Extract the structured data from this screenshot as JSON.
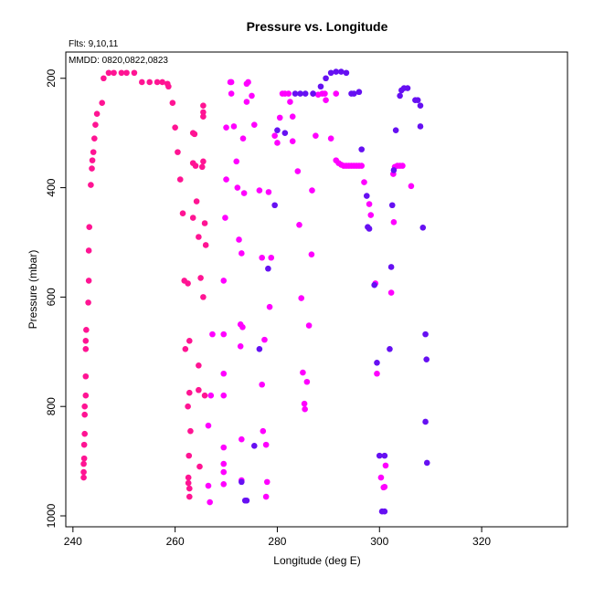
{
  "chart_data": {
    "type": "scatter",
    "title": "Pressure vs. Longitude",
    "subtitle": "Flts: 9,10,11",
    "annotation": "MMDD: 0820,0822,0823",
    "x_label": "Longitude (deg E)",
    "y_label": "Pressure (mbar)",
    "xlim": [
      238.6,
      336.8
    ],
    "ylim": [
      1020,
      152
    ],
    "xticks": [
      240,
      260,
      280,
      300,
      320
    ],
    "yticks": [
      200,
      400,
      600,
      800,
      1000
    ],
    "grid": false,
    "series": [
      {
        "color": "#ff1493",
        "x": [
          242.1,
          242.1,
          242.1,
          242.2,
          242.2,
          242.3,
          242.3,
          242.3,
          242.5,
          242.5,
          242.5,
          242.5,
          242.6,
          243,
          243.1,
          243.1,
          243.2,
          243.5,
          243.7,
          243.8,
          244,
          244.2,
          244.4,
          244.7,
          245.7,
          246,
          247,
          248,
          249.5,
          250.5,
          252,
          253.5,
          255,
          256.5,
          257.5,
          258.5,
          258.7,
          259.5,
          260,
          260.5,
          261,
          261.5,
          261.8,
          262.5,
          262,
          262.5,
          262.8,
          262.8,
          263,
          262.7,
          262.6,
          262.6,
          262.8,
          262.8,
          263.5,
          263.8,
          263.5,
          264,
          263.5,
          264.2,
          264.6,
          265,
          264.6,
          264.6,
          265.3,
          265.5,
          265.5,
          265.5,
          265.5,
          265.8,
          266,
          265.5,
          265.8,
          264.8
        ],
        "values": [
          930,
          920,
          905,
          895,
          870,
          850,
          815,
          800,
          780,
          745,
          695,
          680,
          660,
          610,
          570,
          515,
          472,
          395,
          365,
          350,
          335,
          310,
          285,
          265,
          245,
          200,
          190,
          190,
          190,
          190,
          190,
          207,
          207,
          207,
          207,
          210,
          215,
          245,
          290,
          335,
          385,
          447,
          570,
          575,
          695,
          800,
          775,
          680,
          845,
          890,
          930,
          940,
          950,
          965,
          300,
          302,
          355,
          360,
          455,
          425,
          490,
          565,
          725,
          770,
          362,
          250,
          262,
          270,
          352,
          465,
          505,
          600,
          780,
          910
        ]
      },
      {
        "color": "#ff00ff",
        "x": [
          266.8,
          266.5,
          266.5,
          267,
          267.3,
          269.5,
          269.5,
          269.5,
          269.5,
          269.8,
          270,
          269.5,
          269.5,
          269.5,
          269.5,
          270,
          270.8,
          271,
          271,
          271.5,
          272,
          272.2,
          272.5,
          273,
          272.8,
          273.2,
          272.8,
          273,
          273,
          273.5,
          273.3,
          274,
          274,
          274.3,
          275,
          275.5,
          276.5,
          277,
          277.5,
          277,
          277.2,
          277.8,
          277.8,
          278,
          278.3,
          278.5,
          278.8,
          279.5,
          280,
          280.5,
          281,
          281.5,
          282.2,
          282.5,
          283,
          283,
          284,
          284.3,
          284.7,
          285,
          285.3,
          285.4,
          285.8,
          286.2,
          286.7,
          286.8,
          287.5,
          287,
          288,
          288.8,
          289.3,
          289.5,
          290.5,
          291.5,
          291.5,
          292,
          292.5,
          293,
          293.5,
          294,
          294.5,
          295,
          295.5,
          296,
          296.5,
          297,
          298,
          298.3,
          299.2,
          299.5,
          300.3,
          300.8,
          301,
          301.2,
          302.3,
          302.8,
          302.7,
          303,
          303.5,
          304,
          304.5,
          306.2
        ],
        "values": [
          975,
          945,
          835,
          780,
          668,
          780,
          740,
          668,
          570,
          455,
          385,
          875,
          905,
          920,
          942,
          290,
          207,
          207,
          228,
          288,
          352,
          400,
          495,
          520,
          650,
          655,
          690,
          860,
          935,
          410,
          310,
          243,
          210,
          207,
          232,
          285,
          405,
          528,
          678,
          760,
          845,
          870,
          965,
          938,
          408,
          618,
          528,
          305,
          318,
          272,
          228,
          228,
          228,
          243,
          270,
          315,
          370,
          468,
          602,
          738,
          795,
          805,
          755,
          652,
          522,
          405,
          305,
          228,
          230,
          228,
          228,
          240,
          310,
          350,
          228,
          355,
          358,
          360,
          360,
          360,
          360,
          360,
          360,
          360,
          360,
          390,
          430,
          450,
          575,
          740,
          930,
          948,
          947,
          908,
          592,
          463,
          375,
          362,
          360,
          360,
          360,
          397
        ]
      },
      {
        "color": "#6610f2",
        "x": [
          274,
          273.7,
          273,
          275.5,
          276.5,
          278.2,
          279.5,
          280,
          281.5,
          283.5,
          284.5,
          285.5,
          287,
          288.5,
          289.5,
          290.5,
          291.5,
          292.5,
          293.5,
          294.5,
          295,
          296,
          296.5,
          297.5,
          297.7,
          298,
          299,
          299.5,
          300,
          301,
          300.5,
          301,
          302,
          302.3,
          302.5,
          302.8,
          303.2,
          304,
          304.3,
          304.8,
          305.5,
          307,
          307.5,
          308,
          308,
          308.5,
          309,
          309.2,
          309,
          309.3
        ],
        "values": [
          972,
          972,
          938,
          872,
          695,
          548,
          432,
          295,
          300,
          228,
          228,
          228,
          228,
          215,
          200,
          190,
          188,
          188,
          190,
          228,
          228,
          225,
          330,
          415,
          472,
          475,
          578,
          720,
          890,
          890,
          992,
          992,
          695,
          545,
          432,
          368,
          295,
          232,
          222,
          218,
          218,
          240,
          240,
          250,
          288,
          473,
          668,
          714,
          828,
          903
        ]
      }
    ]
  }
}
